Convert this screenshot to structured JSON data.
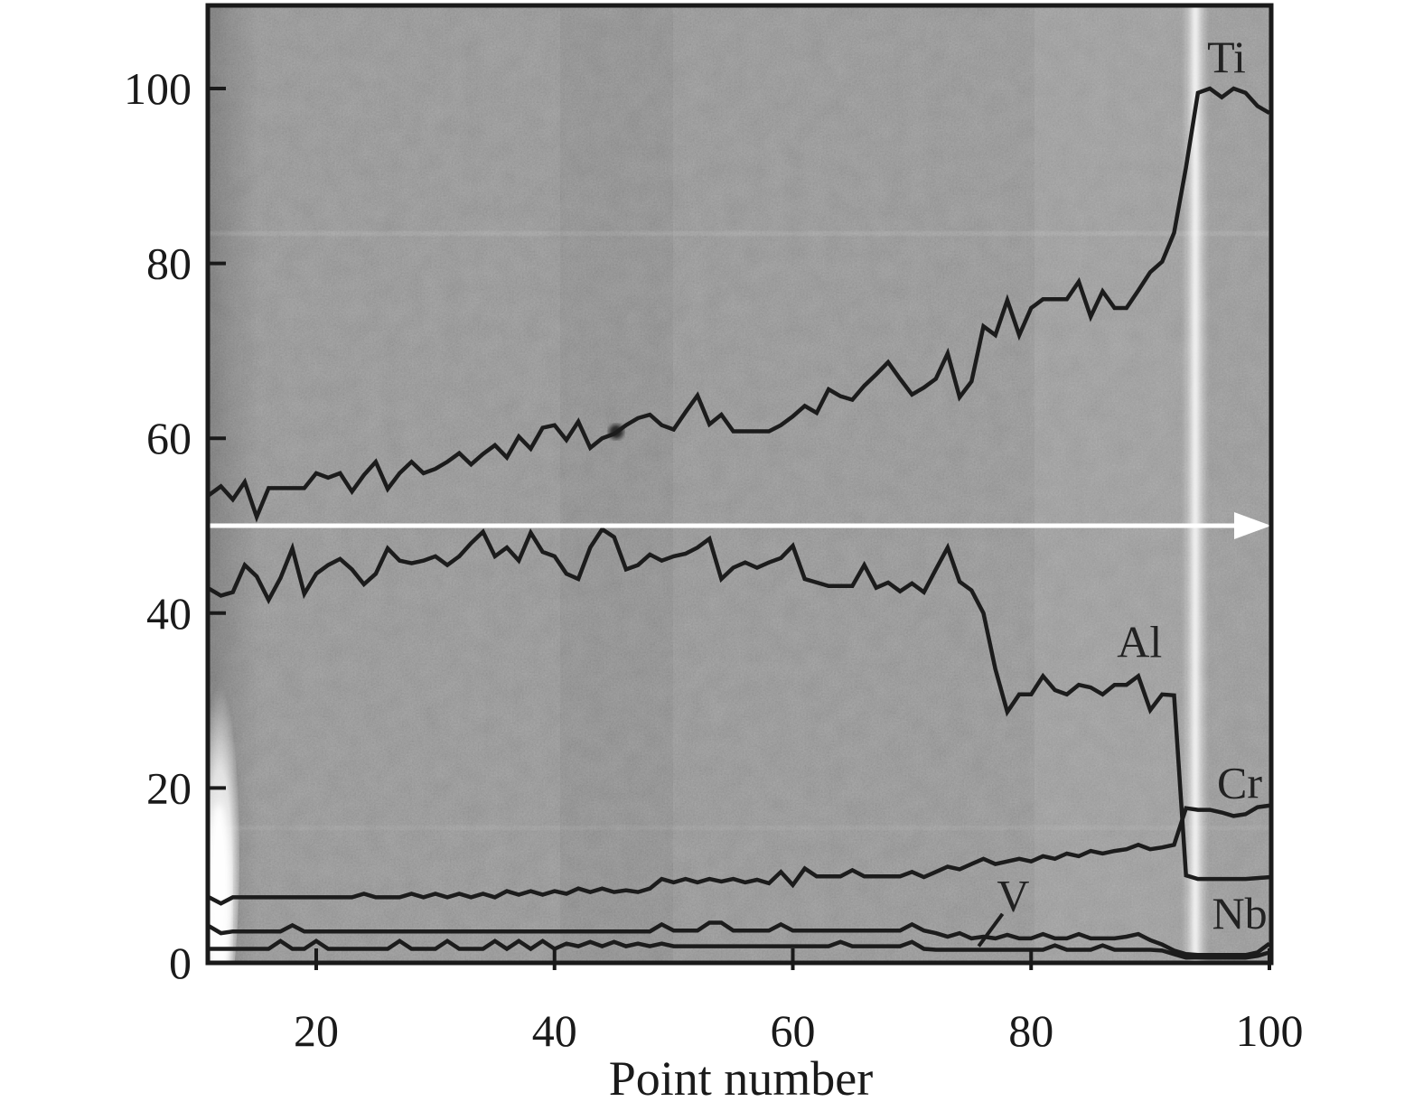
{
  "figure": {
    "description": "EDS line-scan element composition profile across a joint, overlaid on SEM micrograph",
    "scan_arrow": {
      "direction": "right",
      "value_level": 50,
      "color": "#ffffff"
    }
  },
  "colors": {
    "line": "#1c1c1c",
    "background_gray": "#7c7c7c",
    "arrow": "#ffffff",
    "text": "#1a1a1a",
    "bright_stripe": "#ffffff"
  },
  "chart_data": {
    "type": "line",
    "title": "",
    "xlabel": "Point number",
    "ylabel": "",
    "xlim": [
      11,
      100
    ],
    "ylim": [
      0,
      100
    ],
    "x_ticks": [
      20,
      40,
      60,
      80,
      100
    ],
    "y_ticks": [
      0,
      20,
      40,
      60,
      80,
      100
    ],
    "grid": false,
    "legend_position": "inline-labels",
    "x_start": 11,
    "x_step": 1,
    "series": [
      {
        "name": "Ti",
        "label": {
          "text": "Ti",
          "p": 96.4,
          "v": 103.5
        },
        "values": [
          53.5,
          54.5,
          53,
          55,
          51,
          54.3,
          54.3,
          54.3,
          54.3,
          56,
          55.5,
          56,
          53.9,
          55.8,
          57.3,
          54.2,
          56,
          57.3,
          56,
          56.5,
          57.3,
          58.3,
          57,
          58.2,
          59.2,
          57.8,
          60.2,
          58.8,
          61.2,
          61.5,
          59.8,
          61.9,
          58.9,
          60,
          60.5,
          61.5,
          62.3,
          62.7,
          61.5,
          61,
          63,
          64.9,
          61.6,
          62.7,
          60.8,
          60.8,
          60.8,
          60.8,
          61.5,
          62.5,
          63.7,
          62.9,
          65.6,
          64.8,
          64.4,
          66,
          67.3,
          68.7,
          66.8,
          65,
          65.8,
          66.8,
          69.7,
          64.7,
          66.5,
          72.8,
          71.8,
          75.8,
          71.8,
          74.9,
          75.9,
          75.9,
          75.9,
          77.9,
          73.9,
          76.8,
          74.9,
          74.9,
          76.9,
          79,
          80.2,
          83.5,
          91,
          99.5,
          100,
          99,
          100,
          99.5,
          98,
          97.2
        ]
      },
      {
        "name": "Al",
        "label": {
          "text": "Al",
          "p": 89.1,
          "v": 36.6
        },
        "values": [
          42.8,
          42,
          42.4,
          45.5,
          44.2,
          41.5,
          44,
          47.4,
          42.2,
          44.5,
          45.5,
          46.2,
          45,
          43.3,
          44.5,
          47.4,
          46,
          45.7,
          46,
          46.5,
          45.5,
          46.5,
          48,
          49.3,
          46.5,
          47.5,
          46,
          49.2,
          47,
          46.5,
          44.5,
          43.9,
          47.5,
          49.6,
          48.7,
          45,
          45.5,
          46.7,
          46,
          46.5,
          46.8,
          47.5,
          48.5,
          43.9,
          45.2,
          45.8,
          45.2,
          45.8,
          46.3,
          47.7,
          43.9,
          43.5,
          43.1,
          43.1,
          43.1,
          45.5,
          42.9,
          43.5,
          42.5,
          43.4,
          42.4,
          45,
          47.5,
          43.6,
          42.6,
          40,
          33.6,
          28.7,
          30.7,
          30.7,
          32.8,
          31.2,
          30.7,
          31.8,
          31.5,
          30.7,
          31.8,
          31.8,
          32.8,
          28.9,
          30.7,
          30.6,
          10,
          9.6,
          9.6,
          9.6,
          9.6,
          9.6,
          9.7,
          9.8
        ]
      },
      {
        "name": "Cr",
        "label": {
          "text": "Cr",
          "p": 97.5,
          "v": 20.5
        },
        "values": [
          7.5,
          6.8,
          7.5,
          7.5,
          7.5,
          7.5,
          7.5,
          7.5,
          7.5,
          7.5,
          7.5,
          7.5,
          7.5,
          7.9,
          7.5,
          7.5,
          7.5,
          7.9,
          7.5,
          7.9,
          7.5,
          7.9,
          7.5,
          7.9,
          7.5,
          8.2,
          7.8,
          8.2,
          7.8,
          8.2,
          7.9,
          8.5,
          8.1,
          8.5,
          8.1,
          8.3,
          8.1,
          8.5,
          9.6,
          9.2,
          9.6,
          9.2,
          9.6,
          9.3,
          9.6,
          9.2,
          9.5,
          9.1,
          10.4,
          8.9,
          10.8,
          9.9,
          9.9,
          9.9,
          10.6,
          9.9,
          9.9,
          9.9,
          9.9,
          10.4,
          9.8,
          10.4,
          11,
          10.7,
          11.3,
          11.9,
          11.3,
          11.6,
          11.9,
          11.6,
          12.2,
          11.9,
          12.5,
          12.2,
          12.8,
          12.5,
          12.8,
          13,
          13.5,
          13,
          13.2,
          13.5,
          17.7,
          17.5,
          17.5,
          17.2,
          16.8,
          17,
          17.8,
          18
        ]
      },
      {
        "name": "V",
        "label": {
          "text": "V",
          "p": 78.5,
          "v": 7.6
        },
        "leader": {
          "p1": 77.6,
          "v1": 5.6,
          "p2": 75.6,
          "v2": 1.9
        },
        "values": [
          4.2,
          3.4,
          3.6,
          3.6,
          3.6,
          3.6,
          3.6,
          4.3,
          3.6,
          3.6,
          3.6,
          3.6,
          3.6,
          3.6,
          3.6,
          3.6,
          3.6,
          3.6,
          3.6,
          3.6,
          3.6,
          3.6,
          3.6,
          3.6,
          3.6,
          3.6,
          3.6,
          3.6,
          3.6,
          3.6,
          3.6,
          3.6,
          3.6,
          3.6,
          3.6,
          3.6,
          3.6,
          3.6,
          4.4,
          3.7,
          3.7,
          3.7,
          4.6,
          4.6,
          3.7,
          3.7,
          3.7,
          3.7,
          4.4,
          3.7,
          3.7,
          3.7,
          3.7,
          3.7,
          3.7,
          3.7,
          3.7,
          3.7,
          3.7,
          4.4,
          3.7,
          3.4,
          3,
          3.4,
          2.8,
          3,
          2.8,
          3.2,
          2.8,
          2.8,
          3.3,
          2.8,
          2.8,
          3.3,
          2.8,
          2.8,
          2.8,
          3,
          3.3,
          2.6,
          2.1,
          1.4,
          1,
          0.9,
          0.9,
          0.9,
          0.9,
          0.9,
          1.2,
          2.2
        ]
      },
      {
        "name": "Nb",
        "label": {
          "text": "Nb",
          "p": 97.5,
          "v": 5.6
        },
        "values": [
          1.6,
          1.6,
          1.6,
          1.6,
          1.6,
          1.6,
          2.5,
          1.6,
          1.6,
          2.5,
          1.6,
          1.6,
          1.6,
          1.6,
          1.6,
          1.6,
          2.5,
          1.6,
          1.6,
          1.6,
          2.5,
          1.6,
          1.6,
          1.6,
          2.5,
          1.6,
          2.5,
          1.6,
          2.5,
          1.6,
          2.2,
          1.9,
          2.4,
          1.9,
          2.4,
          1.9,
          2.2,
          1.9,
          2.2,
          1.9,
          1.9,
          1.9,
          1.9,
          1.9,
          1.9,
          1.9,
          1.9,
          1.9,
          1.9,
          1.9,
          1.9,
          1.9,
          1.9,
          2.4,
          1.9,
          1.9,
          1.9,
          1.9,
          1.9,
          2.4,
          1.6,
          1.5,
          1.5,
          1.5,
          1.5,
          1.5,
          1.5,
          1.5,
          1.5,
          1.5,
          1.5,
          2,
          1.5,
          1.5,
          1.5,
          2,
          1.5,
          1.5,
          1.5,
          1.5,
          1.4,
          1,
          0.6,
          0.6,
          0.6,
          0.6,
          0.6,
          0.6,
          0.8,
          1.2
        ]
      }
    ]
  }
}
